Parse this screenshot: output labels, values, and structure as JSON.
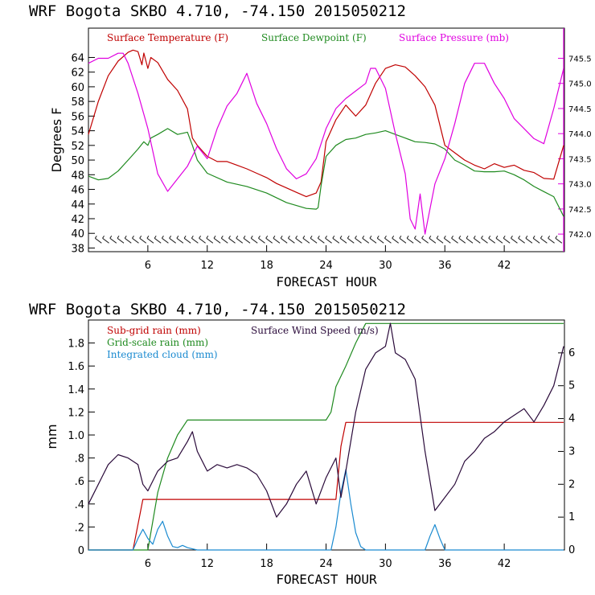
{
  "chart_data": [
    {
      "type": "line",
      "title": "WRF  Bogota SKBO    4.710, -74.150  2015050212",
      "xlabel": "FORECAST HOUR",
      "ylabel": "Degrees F",
      "xlim": [
        0,
        48
      ],
      "ylim": [
        37.5,
        68
      ],
      "y2lim": [
        741.65,
        746.1
      ],
      "xticks": [
        "6",
        "12",
        "18",
        "24",
        "30",
        "36",
        "42"
      ],
      "yticks": [
        "38",
        "40",
        "42",
        "44",
        "46",
        "48",
        "50",
        "52",
        "54",
        "56",
        "58",
        "60",
        "62",
        "64"
      ],
      "y2ticks": [
        "742.0",
        "742.5",
        "743.0",
        "743.5",
        "744.0",
        "744.5",
        "745.0",
        "745.5"
      ],
      "legend": [
        "Surface Temperature (F)",
        "Surface Dewpoint (F)",
        "Surface Pressure (mb)"
      ],
      "colors": {
        "temp": "#c00000",
        "dew": "#1f8a1f",
        "pres": "#e000e0",
        "wind": "#222222"
      },
      "series": [
        {
          "name": "Surface Temperature (F)",
          "axis": "left",
          "x": [
            0,
            1,
            2,
            3,
            4,
            4.5,
            5,
            5.4,
            5.6,
            6,
            6.3,
            7,
            8,
            9,
            10,
            10.5,
            11,
            12,
            13,
            14,
            15,
            16,
            17,
            18,
            19,
            20,
            21,
            22,
            23,
            23.5,
            24,
            25,
            26,
            27,
            28,
            29,
            30,
            31,
            32,
            33,
            34,
            35,
            36,
            37,
            38,
            39,
            40,
            41,
            42,
            43,
            44,
            45,
            46,
            47,
            48
          ],
          "y": [
            53.5,
            58,
            61.5,
            63.5,
            64.7,
            65,
            64.8,
            63,
            64.6,
            62.5,
            64,
            63.3,
            61,
            59.5,
            57,
            53,
            52,
            50.5,
            49.8,
            49.8,
            49.3,
            48.8,
            48.2,
            47.6,
            46.8,
            46.2,
            45.6,
            45,
            45.5,
            47,
            52.5,
            55.5,
            57.5,
            56,
            57.5,
            60.5,
            62.5,
            63,
            62.7,
            61.5,
            60,
            57.5,
            52,
            51,
            50,
            49.3,
            48.8,
            49.5,
            49,
            49.3,
            48.6,
            48.3,
            47.5,
            47.4,
            52
          ]
        },
        {
          "name": "Surface Dewpoint (F)",
          "axis": "left",
          "x": [
            0,
            1,
            2,
            3,
            4,
            5,
            5.6,
            6,
            6.3,
            7,
            8,
            9,
            10,
            10.5,
            11,
            12,
            14,
            16,
            18,
            20,
            21,
            22,
            23,
            23.2,
            23.5,
            24,
            25,
            26,
            27,
            28,
            29,
            30,
            31,
            32,
            33,
            34,
            35,
            36,
            37,
            38,
            39,
            40,
            41,
            42,
            43,
            44,
            45,
            46,
            47,
            48
          ],
          "y": [
            47.8,
            47.3,
            47.5,
            48.5,
            50,
            51.5,
            52.5,
            52,
            53,
            53.5,
            54.3,
            53.5,
            53.8,
            52,
            50,
            48.2,
            47,
            46.4,
            45.5,
            44.2,
            43.8,
            43.4,
            43.3,
            43.5,
            46.5,
            50.5,
            52,
            52.8,
            53,
            53.5,
            53.7,
            54,
            53.5,
            53,
            52.5,
            52.4,
            52.2,
            51.5,
            50,
            49.3,
            48.5,
            48.4,
            48.4,
            48.5,
            48,
            47.3,
            46.4,
            45.7,
            45,
            42.3
          ]
        },
        {
          "name": "Surface Pressure (mb)",
          "axis": "right",
          "x": [
            0,
            1,
            2,
            3,
            3.5,
            4,
            5,
            6,
            7,
            8,
            9,
            10,
            11,
            12,
            13,
            14,
            15,
            16,
            17,
            18,
            19,
            20,
            21,
            22,
            23,
            24,
            25,
            25.5,
            26,
            27,
            28,
            28.5,
            29,
            30,
            31,
            32,
            32.5,
            33,
            33.5,
            34,
            35,
            36,
            37,
            38,
            39,
            40,
            41,
            42,
            43,
            44,
            45,
            46,
            47,
            48
          ],
          "y": [
            745.4,
            745.5,
            745.5,
            745.6,
            745.6,
            745.4,
            744.8,
            744.1,
            743.2,
            742.85,
            743.1,
            743.35,
            743.75,
            743.5,
            744.1,
            744.55,
            744.8,
            745.2,
            744.6,
            744.2,
            743.7,
            743.3,
            743.1,
            743.2,
            743.5,
            744.1,
            744.5,
            744.6,
            744.7,
            744.85,
            745.0,
            745.3,
            745.3,
            744.9,
            744.0,
            743.2,
            742.3,
            742.1,
            742.8,
            742.0,
            743.0,
            743.5,
            744.2,
            745.0,
            745.4,
            745.4,
            745.0,
            744.7,
            744.3,
            744.1,
            743.9,
            743.8,
            744.5,
            745.3
          ]
        },
        {
          "name": "Surface Wind Barbs",
          "axis": "left",
          "y_level": 39
        }
      ]
    },
    {
      "type": "line",
      "title": "WRF  Bogota SKBO    4.710, -74.150  2015050212",
      "xlabel": "FORECAST HOUR",
      "ylabel": "mm",
      "xlim": [
        0,
        48
      ],
      "ylim": [
        0,
        2.0
      ],
      "y2lim": [
        0,
        7
      ],
      "xticks": [
        "6",
        "12",
        "18",
        "24",
        "30",
        "36",
        "42"
      ],
      "yticks": [
        "0",
        ".2",
        ".4",
        ".6",
        ".8",
        "1.0",
        "1.2",
        "1.4",
        "1.6",
        "1.8"
      ],
      "y2ticks": [
        "0",
        "1",
        "2",
        "3",
        "4",
        "5",
        "6"
      ],
      "legend": [
        "Sub-grid rain (mm)",
        "Grid-scale rain (mm)",
        "Integrated cloud (mm)",
        "Surface Wind Speed (m/s)"
      ],
      "colors": {
        "subgrid": "#c00000",
        "grid": "#1f8a1f",
        "cloud": "#1a8ad0",
        "wind": "#2a0a3a"
      },
      "series": [
        {
          "name": "Sub-grid rain (mm)",
          "axis": "left",
          "x": [
            0,
            4.5,
            5.5,
            6,
            25,
            25.5,
            26,
            48
          ],
          "y": [
            0,
            0,
            0.44,
            0.44,
            0.44,
            0.9,
            1.11,
            1.11
          ]
        },
        {
          "name": "Grid-scale rain (mm)",
          "axis": "left",
          "x": [
            0,
            6,
            7,
            8,
            9,
            10,
            12,
            24,
            24.5,
            25,
            26,
            27,
            28,
            29,
            48
          ],
          "y": [
            0,
            0,
            0.5,
            0.8,
            1.0,
            1.13,
            1.13,
            1.13,
            1.2,
            1.42,
            1.6,
            1.8,
            1.97,
            1.97,
            1.97
          ]
        },
        {
          "name": "Integrated cloud (mm)",
          "axis": "left",
          "x": [
            0,
            4.5,
            5,
            5.5,
            6,
            6.5,
            7,
            7.5,
            8,
            8.5,
            9,
            9.5,
            10,
            10.5,
            11,
            24.5,
            25,
            25.5,
            26,
            26.5,
            27,
            27.5,
            28,
            34,
            34.5,
            35,
            35.5,
            36,
            48
          ],
          "y": [
            0,
            0,
            0.1,
            0.18,
            0.1,
            0.05,
            0.18,
            0.25,
            0.12,
            0.03,
            0.02,
            0.04,
            0.02,
            0.01,
            0,
            0,
            0.2,
            0.5,
            0.7,
            0.4,
            0.15,
            0.03,
            0,
            0,
            0.12,
            0.22,
            0.1,
            0,
            0
          ]
        },
        {
          "name": "Surface Wind Speed (m/s)",
          "axis": "right",
          "x": [
            0,
            1,
            2,
            3,
            4,
            5,
            5.5,
            6,
            7,
            8,
            9,
            10,
            10.5,
            11,
            12,
            13,
            14,
            15,
            16,
            17,
            18,
            19,
            20,
            21,
            22,
            23,
            24,
            25,
            25.5,
            26,
            27,
            28,
            29,
            30,
            30.5,
            31,
            32,
            33,
            34,
            35,
            36,
            37,
            38,
            39,
            40,
            41,
            42,
            43,
            44,
            45,
            46,
            47,
            48
          ],
          "y": [
            1.4,
            2.0,
            2.6,
            2.9,
            2.8,
            2.6,
            2.0,
            1.8,
            2.4,
            2.7,
            2.8,
            3.3,
            3.6,
            3.0,
            2.4,
            2.6,
            2.5,
            2.6,
            2.5,
            2.3,
            1.8,
            1.0,
            1.4,
            2.0,
            2.4,
            1.4,
            2.2,
            2.8,
            1.6,
            2.4,
            4.2,
            5.5,
            6.0,
            6.2,
            6.9,
            6.0,
            5.8,
            5.2,
            3.0,
            1.2,
            1.6,
            2.0,
            2.7,
            3.0,
            3.4,
            3.6,
            3.9,
            4.1,
            4.3,
            3.9,
            4.4,
            5.0,
            6.2
          ]
        }
      ]
    }
  ]
}
